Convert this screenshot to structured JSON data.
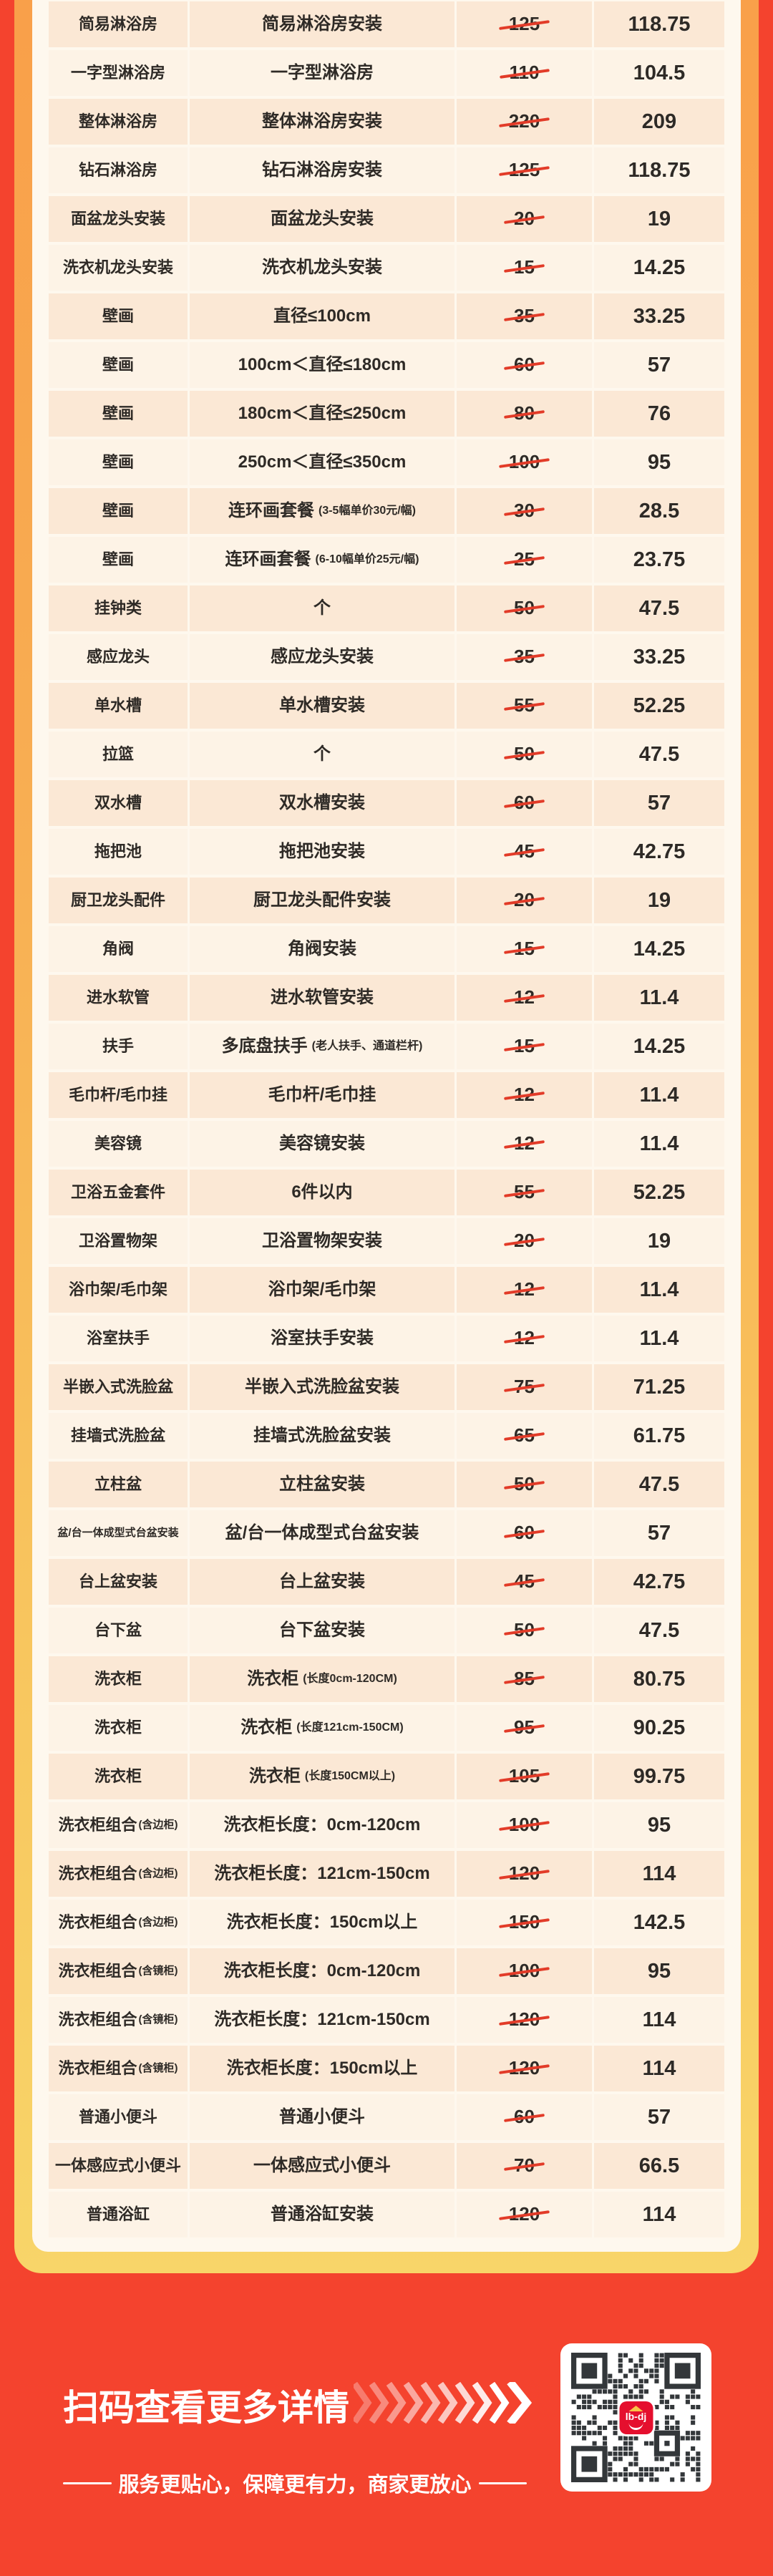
{
  "colors": {
    "page_background": "#F4432E",
    "frame_gradient_top": "#F99F49",
    "frame_gradient_bottom": "#F8D569",
    "panel_background": "#FEF8EE",
    "row_peach": "#FBE8D5",
    "row_light": "#FDF3E6",
    "text_dark": "#2E2A26",
    "strike_red": "#E23B28",
    "discount_price_red": "#C13A2D",
    "qr_logo_red": "#E50F2E"
  },
  "table": {
    "rows": [
      {
        "c1": "简易淋浴房",
        "c2": "简易淋浴房安装",
        "old": "125",
        "new": "118.75"
      },
      {
        "c1": "一字型淋浴房",
        "c2": "一字型淋浴房",
        "old": "110",
        "new": "104.5"
      },
      {
        "c1": "整体淋浴房",
        "c2": "整体淋浴房安装",
        "old": "220",
        "new": "209"
      },
      {
        "c1": "钻石淋浴房",
        "c2": "钻石淋浴房安装",
        "old": "125",
        "new": "118.75"
      },
      {
        "c1": "面盆龙头安装",
        "c2": "面盆龙头安装",
        "old": "20",
        "new": "19"
      },
      {
        "c1": "洗衣机龙头安装",
        "c2": "洗衣机龙头安装",
        "old": "15",
        "new": "14.25"
      },
      {
        "c1": "壁画",
        "c2": "直径≤100cm",
        "old": "35",
        "new": "33.25"
      },
      {
        "c1": "壁画",
        "c2": "100cm＜直径≤180cm",
        "old": "60",
        "new": "57"
      },
      {
        "c1": "壁画",
        "c2": "180cm＜直径≤250cm",
        "old": "80",
        "new": "76"
      },
      {
        "c1": "壁画",
        "c2": "250cm＜直径≤350cm",
        "old": "100",
        "new": "95"
      },
      {
        "c1": "壁画",
        "c2": "连环画套餐",
        "c2note": "(3-5幅单价30元/幅)",
        "old": "30",
        "new": "28.5"
      },
      {
        "c1": "壁画",
        "c2": "连环画套餐",
        "c2note": "(6-10幅单价25元/幅)",
        "old": "25",
        "new": "23.75"
      },
      {
        "c1": "挂钟类",
        "c2": "个",
        "old": "50",
        "new": "47.5"
      },
      {
        "c1": "感应龙头",
        "c2": "感应龙头安装",
        "old": "35",
        "new": "33.25"
      },
      {
        "c1": "单水槽",
        "c2": "单水槽安装",
        "old": "55",
        "new": "52.25"
      },
      {
        "c1": "拉篮",
        "c2": "个",
        "old": "50",
        "new": "47.5"
      },
      {
        "c1": "双水槽",
        "c2": "双水槽安装",
        "old": "60",
        "new": "57"
      },
      {
        "c1": "拖把池",
        "c2": "拖把池安装",
        "old": "45",
        "new": "42.75"
      },
      {
        "c1": "厨卫龙头配件",
        "c2": "厨卫龙头配件安装",
        "old": "20",
        "new": "19"
      },
      {
        "c1": "角阀",
        "c2": "角阀安装",
        "old": "15",
        "new": "14.25"
      },
      {
        "c1": "进水软管",
        "c2": "进水软管安装",
        "old": "12",
        "new": "11.4"
      },
      {
        "c1": "扶手",
        "c2": "多底盘扶手",
        "c2note": "(老人扶手、通道栏杆)",
        "old": "15",
        "new": "14.25"
      },
      {
        "c1": "毛巾杆/毛巾挂",
        "c2": "毛巾杆/毛巾挂",
        "old": "12",
        "new": "11.4"
      },
      {
        "c1": "美容镜",
        "c2": "美容镜安装",
        "old": "12",
        "new": "11.4"
      },
      {
        "c1": "卫浴五金套件",
        "c2": "6件以内",
        "old": "55",
        "new": "52.25"
      },
      {
        "c1": "卫浴置物架",
        "c2": "卫浴置物架安装",
        "old": "20",
        "new": "19"
      },
      {
        "c1": "浴巾架/毛巾架",
        "c2": "浴巾架/毛巾架",
        "old": "12",
        "new": "11.4"
      },
      {
        "c1": "浴室扶手",
        "c2": "浴室扶手安装",
        "old": "12",
        "new": "11.4"
      },
      {
        "c1": "半嵌入式洗脸盆",
        "c2": "半嵌入式洗脸盆安装",
        "old": "75",
        "new": "71.25"
      },
      {
        "c1": "挂墙式洗脸盆",
        "c2": "挂墙式洗脸盆安装",
        "old": "65",
        "new": "61.75"
      },
      {
        "c1": "立柱盆",
        "c2": "立柱盆安装",
        "old": "50",
        "new": "47.5"
      },
      {
        "c1": "盆/台一体成型式台盆安装",
        "c2": "盆/台一体成型式台盆安装",
        "old": "60",
        "new": "57"
      },
      {
        "c1": "台上盆安装",
        "c2": "台上盆安装",
        "old": "45",
        "new": "42.75"
      },
      {
        "c1": "台下盆",
        "c2": "台下盆安装",
        "old": "50",
        "new": "47.5"
      },
      {
        "c1": "洗衣柜",
        "c2": "洗衣柜",
        "c2note": "(长度0cm-120CM)",
        "old": "85",
        "new": "80.75"
      },
      {
        "c1": "洗衣柜",
        "c2": "洗衣柜",
        "c2note": "(长度121cm-150CM)",
        "old": "95",
        "new": "90.25"
      },
      {
        "c1": "洗衣柜",
        "c2": "洗衣柜",
        "c2note": "(长度150CM以上)",
        "old": "105",
        "new": "99.75"
      },
      {
        "c1": "洗衣柜组合",
        "c1note": "(含边柜)",
        "c2": "洗衣柜长度：0cm-120cm",
        "old": "100",
        "new": "95"
      },
      {
        "c1": "洗衣柜组合",
        "c1note": "(含边柜)",
        "c2": "洗衣柜长度：121cm-150cm",
        "old": "120",
        "new": "114"
      },
      {
        "c1": "洗衣柜组合",
        "c1note": "(含边柜)",
        "c2": "洗衣柜长度：150cm以上",
        "old": "150",
        "new": "142.5"
      },
      {
        "c1": "洗衣柜组合",
        "c1note": "(含镜柜)",
        "c2": "洗衣柜长度：0cm-120cm",
        "old": "100",
        "new": "95"
      },
      {
        "c1": "洗衣柜组合",
        "c1note": "(含镜柜)",
        "c2": "洗衣柜长度：121cm-150cm",
        "old": "120",
        "new": "114"
      },
      {
        "c1": "洗衣柜组合",
        "c1note": "(含镜柜)",
        "c2": "洗衣柜长度：150cm以上",
        "old": "120",
        "new": "114"
      },
      {
        "c1": "普通小便斗",
        "c2": "普通小便斗",
        "old": "60",
        "new": "57"
      },
      {
        "c1": "一体感应式小便斗",
        "c2": "一体感应式小便斗",
        "old": "70",
        "new": "66.5"
      },
      {
        "c1": "普通浴缸",
        "c2": "普通浴缸安装",
        "old": "120",
        "new": "114"
      }
    ]
  },
  "footer": {
    "title": "扫码查看更多详情",
    "subtitle": "服务更贴心，保障更有力，商家更放心",
    "qr_logo_text": "lb-dj"
  }
}
